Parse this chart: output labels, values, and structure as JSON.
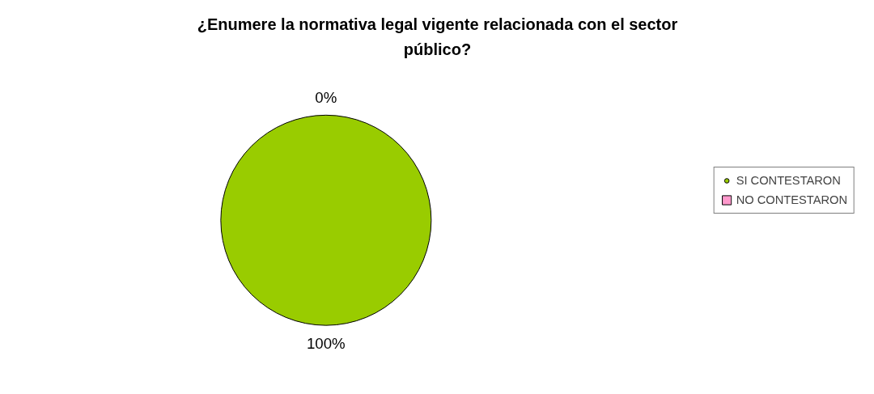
{
  "chart_data": {
    "type": "pie",
    "title": "¿Enumere la normativa legal vigente relacionada con el sector público?",
    "categories": [
      "SI CONTESTARON",
      "NO CONTESTARON"
    ],
    "values": [
      100,
      0
    ],
    "colors": [
      "#99cc00",
      "#ff99cc"
    ],
    "value_labels": [
      "100%",
      "0%"
    ],
    "legend": "right"
  }
}
